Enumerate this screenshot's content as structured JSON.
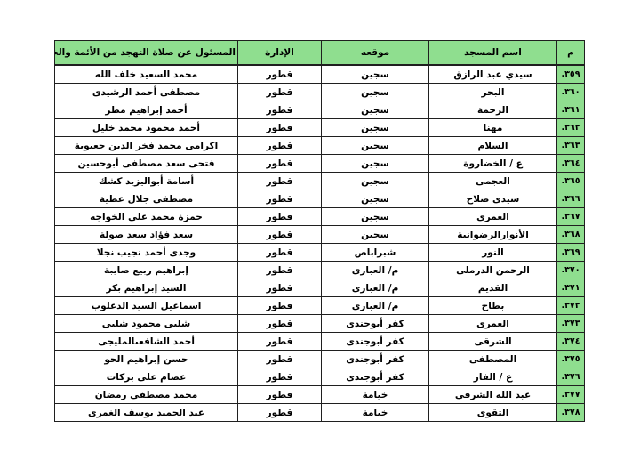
{
  "colors": {
    "accent_green": "#8FDE8F",
    "border": "#1f1f1f",
    "page_background": "#ffffff"
  },
  "table": {
    "columns": [
      {
        "key": "num",
        "label": "م"
      },
      {
        "key": "mosque",
        "label": "اسم المسجد"
      },
      {
        "key": "location",
        "label": "موقعه"
      },
      {
        "key": "admin",
        "label": "الإدارة"
      },
      {
        "key": "responsible",
        "label": "المسئول عن صلاة التهجد من الأئمة والخطباء."
      }
    ],
    "rows": [
      [
        "٣٥٩.",
        "سيدي عبد الرازق",
        "سجين",
        "قطور",
        "محمد السعيد خلف الله"
      ],
      [
        "٣٦٠.",
        "البحر",
        "سجين",
        "قطور",
        "مصطفى أحمد الرشيدى"
      ],
      [
        "٣٦١.",
        "الرحمة",
        "سجين",
        "قطور",
        "أحمد إبراهيم مطر"
      ],
      [
        "٣٦٢.",
        "مهنا",
        "سجين",
        "قطور",
        "أحمد محمود محمد خليل"
      ],
      [
        "٣٦٣.",
        "السلام",
        "سجين",
        "قطور",
        "اكرامى محمد فخر الدين جعبوبة"
      ],
      [
        "٣٦٤.",
        "ع / الخضاروة",
        "سجين",
        "قطور",
        "فتحى سعد مصطفى أبوحسين"
      ],
      [
        "٣٦٥.",
        "العجمى",
        "سجين",
        "قطور",
        "أسامة أبواليزيد كشك"
      ],
      [
        "٣٦٦.",
        "سيدى صلاح",
        "سجين",
        "قطور",
        "مصطفى جلال عطية"
      ],
      [
        "٣٦٧.",
        "الغمرى",
        "سجين",
        "قطور",
        "حمزة محمد على الخواجه"
      ],
      [
        "٣٦٨.",
        "الأنوارالرضوانية",
        "سجين",
        "قطور",
        "سعد فؤاد سعد صولة"
      ],
      [
        "٣٦٩.",
        "النور",
        "شبراباص",
        "قطور",
        "وجدى أحمد نجيب نجلا"
      ],
      [
        "٣٧٠.",
        "الرحمن الدرملى",
        "م/ العبارى",
        "قطور",
        "إبراهيم ربيع صايبة"
      ],
      [
        "٣٧١.",
        "القديم",
        "م/ العبارى",
        "قطور",
        "السيد إبراهيم بكر"
      ],
      [
        "٣٧٢.",
        "بطاح",
        "م/ العبارى",
        "قطور",
        "اسماعيل السيد الدعلوب"
      ],
      [
        "٣٧٣.",
        "العمرى",
        "كفر أبوجندى",
        "قطور",
        "شلبى محمود شلبى"
      ],
      [
        "٣٧٤.",
        "الشرقى",
        "كفر أبوجندى",
        "قطور",
        "أحمد الشافعىالمليجى"
      ],
      [
        "٣٧٥.",
        "المصطفى",
        "كفر أبوجندى",
        "قطور",
        "حسن إبراهيم الحو"
      ],
      [
        "٣٧٦.",
        "ع / الفار",
        "كفر أبوجندى",
        "قطور",
        "عصام على بركات"
      ],
      [
        "٣٧٧.",
        "عبد الله الشرقى",
        "خيامة",
        "قطور",
        "محمد مصطفى رمضان"
      ],
      [
        "٣٧٨.",
        "التقوى",
        "خيامة",
        "قطور",
        "عبد الحميد يوسف الغمرى"
      ]
    ]
  }
}
